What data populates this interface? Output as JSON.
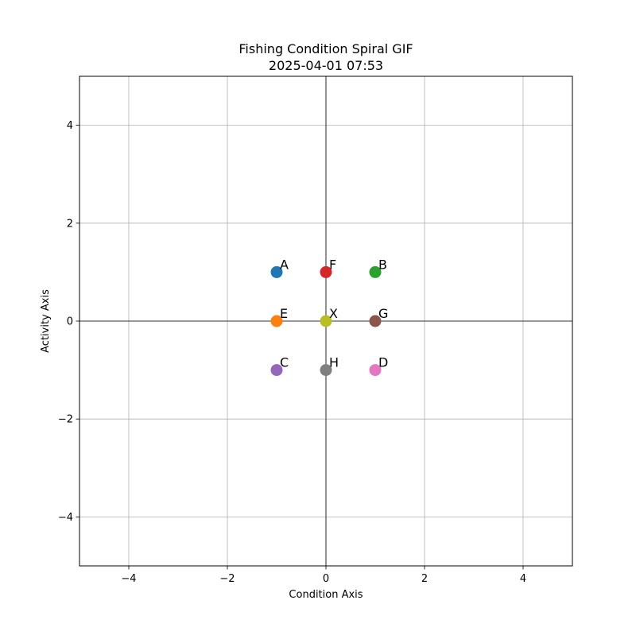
{
  "chart_data": {
    "type": "scatter",
    "title": "Fishing Condition Spiral GIF",
    "subtitle": "2025-04-01 07:53",
    "xlabel": "Condition Axis",
    "ylabel": "Activity Axis",
    "xlim": [
      -5,
      5
    ],
    "ylim": [
      -5,
      5
    ],
    "xticks": [
      -4,
      -2,
      0,
      2,
      4
    ],
    "yticks": [
      -4,
      -2,
      0,
      2,
      4
    ],
    "xtick_labels": [
      "−4",
      "−2",
      "0",
      "2",
      "4"
    ],
    "ytick_labels": [
      "−4",
      "−2",
      "0",
      "2",
      "4"
    ],
    "grid": true,
    "zero_lines": true,
    "points": [
      {
        "label": "A",
        "x": -1,
        "y": 1,
        "color": "#1f77b4"
      },
      {
        "label": "E",
        "x": -1,
        "y": 0,
        "color": "#ff7f0e"
      },
      {
        "label": "B",
        "x": 1,
        "y": 1,
        "color": "#2ca02c"
      },
      {
        "label": "F",
        "x": 0,
        "y": 1,
        "color": "#d62728"
      },
      {
        "label": "C",
        "x": -1,
        "y": -1,
        "color": "#9467bd"
      },
      {
        "label": "G",
        "x": 1,
        "y": 0,
        "color": "#8c564b"
      },
      {
        "label": "D",
        "x": 1,
        "y": -1,
        "color": "#e377c2"
      },
      {
        "label": "H",
        "x": 0,
        "y": -1,
        "color": "#7f7f7f"
      },
      {
        "label": "X",
        "x": 0,
        "y": 0,
        "color": "#bcbd22"
      }
    ]
  }
}
